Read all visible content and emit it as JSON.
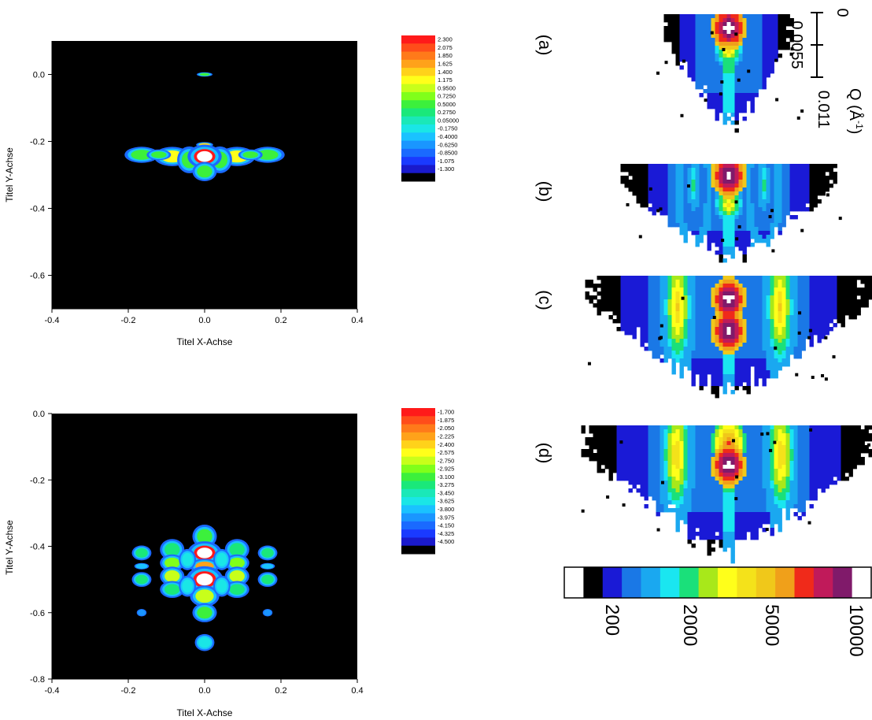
{
  "chart_data": [
    {
      "type": "heatmap",
      "title": "",
      "xlabel": "Titel X-Achse",
      "ylabel": "Titel Y-Achse",
      "xlim": [
        -0.4,
        0.4
      ],
      "ylim": [
        -0.7,
        0.1
      ],
      "xticks": [
        "-0.4",
        "-0.2",
        "0.0",
        "0.2",
        "0.4"
      ],
      "yticks": [
        "0.0",
        "-0.2",
        "-0.4",
        "-0.6"
      ],
      "ytick_values": [
        0.0,
        -0.2,
        -0.4,
        -0.6
      ],
      "background": "#000000",
      "colorbar": {
        "levels": [
          "2.300",
          "2.075",
          "1.850",
          "1.625",
          "1.400",
          "1.175",
          "0.9500",
          "0.7250",
          "0.5000",
          "0.2750",
          "0.05000",
          "-0.1750",
          "-0.4000",
          "-0.6250",
          "-0.8500",
          "-1.075",
          "-1.300"
        ],
        "colors": [
          "#ff1a1a",
          "#ff4d1a",
          "#ff7a1a",
          "#ffa21a",
          "#ffd21a",
          "#ffff1a",
          "#c8ff1a",
          "#80ff1a",
          "#3cf03c",
          "#1ae87a",
          "#1ae8b8",
          "#1ae6e6",
          "#1ac2ff",
          "#1a96ff",
          "#1a6aff",
          "#1a3aff",
          "#1a1acc",
          "#000000"
        ]
      },
      "features": [
        {
          "x": 0.0,
          "y": 0.0,
          "rx": 0.013,
          "ry": 0.004,
          "value": 0.5
        },
        {
          "x": 0.0,
          "y": -0.21,
          "rx": 0.014,
          "ry": 0.005,
          "value": 1.4
        },
        {
          "x": -0.165,
          "y": -0.24,
          "rx": 0.028,
          "ry": 0.015,
          "value": 0.5
        },
        {
          "x": 0.165,
          "y": -0.24,
          "rx": 0.028,
          "ry": 0.015,
          "value": 0.5
        },
        {
          "x": -0.085,
          "y": -0.245,
          "rx": 0.03,
          "ry": 0.018,
          "value": 1.175
        },
        {
          "x": 0.085,
          "y": -0.245,
          "rx": 0.03,
          "ry": 0.018,
          "value": 1.175
        },
        {
          "x": -0.12,
          "y": -0.24,
          "rx": 0.02,
          "ry": 0.01,
          "value": 0.5
        },
        {
          "x": 0.12,
          "y": -0.24,
          "rx": 0.02,
          "ry": 0.01,
          "value": 0.5
        },
        {
          "x": -0.04,
          "y": -0.255,
          "rx": 0.02,
          "ry": 0.025,
          "value": 0.5
        },
        {
          "x": 0.04,
          "y": -0.255,
          "rx": 0.02,
          "ry": 0.025,
          "value": 0.5
        },
        {
          "x": 0.0,
          "y": -0.245,
          "rx": 0.028,
          "ry": 0.022,
          "value": 2.3
        },
        {
          "x": 0.0,
          "y": -0.29,
          "rx": 0.02,
          "ry": 0.018,
          "value": 0.5
        }
      ]
    },
    {
      "type": "heatmap",
      "title": "",
      "xlabel": "Titel X-Achse",
      "ylabel": "Titel Y-Achse",
      "xlim": [
        -0.4,
        0.4
      ],
      "ylim": [
        -0.8,
        0.0
      ],
      "xticks": [
        "-0.4",
        "-0.2",
        "0.0",
        "0.2",
        "0.4"
      ],
      "yticks": [
        "0.0",
        "-0.2",
        "-0.4",
        "-0.6",
        "-0.8"
      ],
      "ytick_values": [
        0.0,
        -0.2,
        -0.4,
        -0.6,
        -0.8
      ],
      "background": "#000000",
      "colorbar": {
        "levels": [
          "-1.700",
          "-1.875",
          "-2.050",
          "-2.225",
          "-2.400",
          "-2.575",
          "-2.750",
          "-2.925",
          "-3.100",
          "-3.275",
          "-3.450",
          "-3.625",
          "-3.800",
          "-3.975",
          "-4.150",
          "-4.325",
          "-4.500"
        ],
        "colors": [
          "#ff1a1a",
          "#ff4d1a",
          "#ff7a1a",
          "#ffa21a",
          "#ffd21a",
          "#ffff1a",
          "#c8ff1a",
          "#80ff1a",
          "#3cf03c",
          "#1ae87a",
          "#1ae8b8",
          "#1ae6e6",
          "#1ac2ff",
          "#1a96ff",
          "#1a6aff",
          "#1a3aff",
          "#1a1acc",
          "#000000"
        ]
      },
      "features": [
        {
          "x": 0.0,
          "y": -0.37,
          "rx": 0.02,
          "ry": 0.022,
          "value": -3.1
        },
        {
          "x": 0.0,
          "y": -0.42,
          "rx": 0.028,
          "ry": 0.022,
          "value": -1.7
        },
        {
          "x": 0.0,
          "y": -0.46,
          "rx": 0.024,
          "ry": 0.014,
          "value": -2.2
        },
        {
          "x": 0.0,
          "y": -0.5,
          "rx": 0.03,
          "ry": 0.025,
          "value": -1.7
        },
        {
          "x": 0.0,
          "y": -0.55,
          "rx": 0.024,
          "ry": 0.02,
          "value": -2.8
        },
        {
          "x": 0.0,
          "y": -0.6,
          "rx": 0.02,
          "ry": 0.018,
          "value": -3.1
        },
        {
          "x": 0.0,
          "y": -0.69,
          "rx": 0.016,
          "ry": 0.016,
          "value": -3.6
        },
        {
          "x": -0.085,
          "y": -0.41,
          "rx": 0.02,
          "ry": 0.02,
          "value": -3.3
        },
        {
          "x": 0.085,
          "y": -0.41,
          "rx": 0.02,
          "ry": 0.02,
          "value": -3.3
        },
        {
          "x": -0.085,
          "y": -0.45,
          "rx": 0.02,
          "ry": 0.016,
          "value": -2.9
        },
        {
          "x": 0.085,
          "y": -0.45,
          "rx": 0.02,
          "ry": 0.016,
          "value": -2.9
        },
        {
          "x": -0.085,
          "y": -0.49,
          "rx": 0.02,
          "ry": 0.018,
          "value": -2.8
        },
        {
          "x": 0.085,
          "y": -0.49,
          "rx": 0.02,
          "ry": 0.018,
          "value": -2.8
        },
        {
          "x": -0.085,
          "y": -0.53,
          "rx": 0.02,
          "ry": 0.016,
          "value": -3.3
        },
        {
          "x": 0.085,
          "y": -0.53,
          "rx": 0.02,
          "ry": 0.016,
          "value": -3.3
        },
        {
          "x": -0.045,
          "y": -0.44,
          "rx": 0.014,
          "ry": 0.02,
          "value": -3.6
        },
        {
          "x": 0.045,
          "y": -0.44,
          "rx": 0.014,
          "ry": 0.02,
          "value": -3.6
        },
        {
          "x": -0.045,
          "y": -0.52,
          "rx": 0.014,
          "ry": 0.02,
          "value": -3.6
        },
        {
          "x": 0.045,
          "y": -0.52,
          "rx": 0.014,
          "ry": 0.02,
          "value": -3.6
        },
        {
          "x": -0.165,
          "y": -0.42,
          "rx": 0.016,
          "ry": 0.014,
          "value": -3.3
        },
        {
          "x": 0.165,
          "y": -0.42,
          "rx": 0.016,
          "ry": 0.014,
          "value": -3.3
        },
        {
          "x": -0.165,
          "y": -0.5,
          "rx": 0.016,
          "ry": 0.014,
          "value": -3.3
        },
        {
          "x": 0.165,
          "y": -0.5,
          "rx": 0.016,
          "ry": 0.014,
          "value": -3.3
        },
        {
          "x": -0.165,
          "y": -0.46,
          "rx": 0.012,
          "ry": 0.006,
          "value": -3.8
        },
        {
          "x": 0.165,
          "y": -0.46,
          "rx": 0.012,
          "ry": 0.006,
          "value": -3.8
        },
        {
          "x": -0.165,
          "y": -0.6,
          "rx": 0.008,
          "ry": 0.007,
          "value": -4.0
        },
        {
          "x": 0.165,
          "y": -0.6,
          "rx": 0.008,
          "ry": 0.007,
          "value": -4.0
        }
      ]
    },
    {
      "type": "heatmap",
      "title": "",
      "panel_labels": [
        "(a)",
        "(b)",
        "(c)",
        "(d)"
      ],
      "scalebar": {
        "ticks": [
          "0",
          "0.0055",
          "0.011"
        ],
        "label_base": "Q (Å",
        "label_exp": "-1",
        "label_close": ")"
      },
      "colorbar": {
        "ticks": [
          "200",
          "2000",
          "5000",
          "10000"
        ],
        "colors": [
          "#ffffff",
          "#000000",
          "#1a1ad6",
          "#1a78e6",
          "#1aa8f0",
          "#1ae6f0",
          "#1ae07a",
          "#a8e81a",
          "#ffff1a",
          "#f4e21a",
          "#f0c81a",
          "#f0a01a",
          "#f02a1a",
          "#c01a5a",
          "#801a6a",
          "#ffffff"
        ]
      },
      "panels": [
        {
          "label": "(a)",
          "wings": 0.35,
          "depth": 1.0,
          "peaks": [
            {
              "y": 0.1,
              "v": 16
            },
            {
              "y": 0.3,
              "v": 9
            }
          ],
          "side": []
        },
        {
          "label": "(b)",
          "wings": 1.0,
          "depth": 1.0,
          "peaks": [
            {
              "y": 0.1,
              "v": 16
            },
            {
              "y": 0.4,
              "v": 9
            }
          ],
          "side": [
            {
              "x": 0.33,
              "y": 0.2,
              "v": 6
            }
          ]
        },
        {
          "label": "(c)",
          "wings": 1.3,
          "depth": 1.0,
          "peaks": [
            {
              "y": 0.18,
              "v": 16
            },
            {
              "y": 0.45,
              "v": 16
            }
          ],
          "side": [
            {
              "x": 0.36,
              "y": 0.25,
              "v": 10
            }
          ]
        },
        {
          "label": "(d)",
          "wings": 1.3,
          "depth": 1.0,
          "peaks": [
            {
              "y": 0.12,
              "v": 12
            },
            {
              "y": 0.3,
              "v": 16
            }
          ],
          "side": [
            {
              "x": 0.36,
              "y": 0.22,
              "v": 10
            }
          ]
        }
      ]
    }
  ]
}
